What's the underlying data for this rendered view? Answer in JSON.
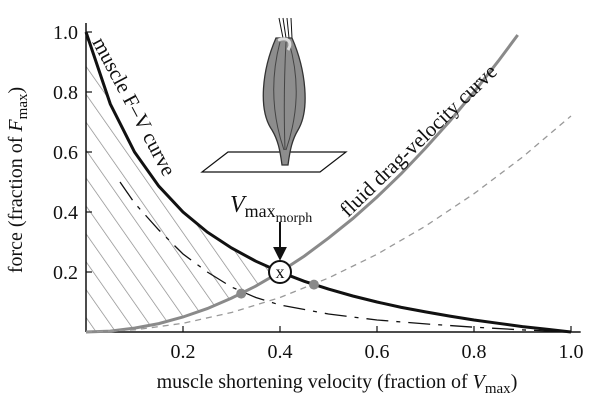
{
  "chart_data": {
    "type": "line",
    "xlabel": {
      "text": "muscle shortening velocity (fraction of ",
      "symbol": "V",
      "sub": "max",
      "end": ")"
    },
    "ylabel": {
      "text": "force (fraction of ",
      "symbol": "F",
      "sub": "max",
      "end": ")"
    },
    "xlim": [
      0,
      1.02
    ],
    "ylim": [
      0,
      1.03
    ],
    "xticks": [
      0.2,
      0.4,
      0.6,
      0.8,
      {
        "value": 1,
        "label": "1.0"
      }
    ],
    "yticks": [
      0.2,
      0.4,
      0.6,
      0.8,
      {
        "value": 1,
        "label": "1.0"
      }
    ],
    "series": [
      {
        "name": "muscle F–V curve",
        "color": "#111111",
        "style": "solid",
        "width": 3,
        "x": [
          0,
          0.05,
          0.1,
          0.15,
          0.2,
          0.25,
          0.3,
          0.35,
          0.4,
          0.45,
          0.5,
          0.55,
          0.6,
          0.65,
          0.7,
          0.75,
          0.8,
          0.85,
          0.9,
          0.95,
          1
        ],
        "values": [
          1,
          0.76,
          0.6,
          0.486,
          0.4,
          0.333,
          0.28,
          0.236,
          0.2,
          0.169,
          0.143,
          0.12,
          0.1,
          0.082,
          0.067,
          0.053,
          0.04,
          0.029,
          0.018,
          0.009,
          0
        ]
      },
      {
        "name": "fluid drag-velocity curve",
        "color": "#8a8a8a",
        "style": "solid",
        "width": 3,
        "x": [
          0,
          0.05,
          0.1,
          0.15,
          0.2,
          0.25,
          0.3,
          0.35,
          0.4,
          0.45,
          0.5,
          0.55,
          0.6,
          0.65,
          0.7,
          0.75,
          0.8,
          0.85,
          0.89
        ],
        "values": [
          0,
          0.003,
          0.013,
          0.028,
          0.05,
          0.078,
          0.113,
          0.153,
          0.2,
          0.253,
          0.313,
          0.378,
          0.45,
          0.528,
          0.613,
          0.703,
          0.8,
          0.903,
          0.99
        ]
      },
      {
        "color": "#999999",
        "style": "dashed",
        "width": 1.3,
        "x": [
          0,
          0.1,
          0.2,
          0.3,
          0.4,
          0.5,
          0.6,
          0.7,
          0.8,
          0.9,
          1
        ],
        "values": [
          0,
          0.007,
          0.029,
          0.065,
          0.115,
          0.18,
          0.259,
          0.353,
          0.461,
          0.583,
          0.72
        ]
      },
      {
        "color": "#111111",
        "style": "dashdot",
        "width": 1.3,
        "x": [
          0.07,
          0.1,
          0.15,
          0.2,
          0.25,
          0.3,
          0.35,
          0.4,
          0.5,
          0.6,
          0.7,
          0.8,
          0.9,
          1
        ],
        "values": [
          0.5,
          0.43,
          0.34,
          0.26,
          0.2,
          0.15,
          0.115,
          0.09,
          0.06,
          0.04,
          0.027,
          0.016,
          0.007,
          0
        ]
      }
    ],
    "points": [
      {
        "x": 0.32,
        "y": 0.128,
        "color": "#8a8a8a"
      },
      {
        "x": 0.47,
        "y": 0.158,
        "color": "#8a8a8a"
      }
    ],
    "marker": {
      "x": 0.4,
      "y": 0.2,
      "label": "x"
    },
    "annotation": {
      "symbol": "V",
      "sub": "max",
      "subsub": "morph"
    }
  }
}
